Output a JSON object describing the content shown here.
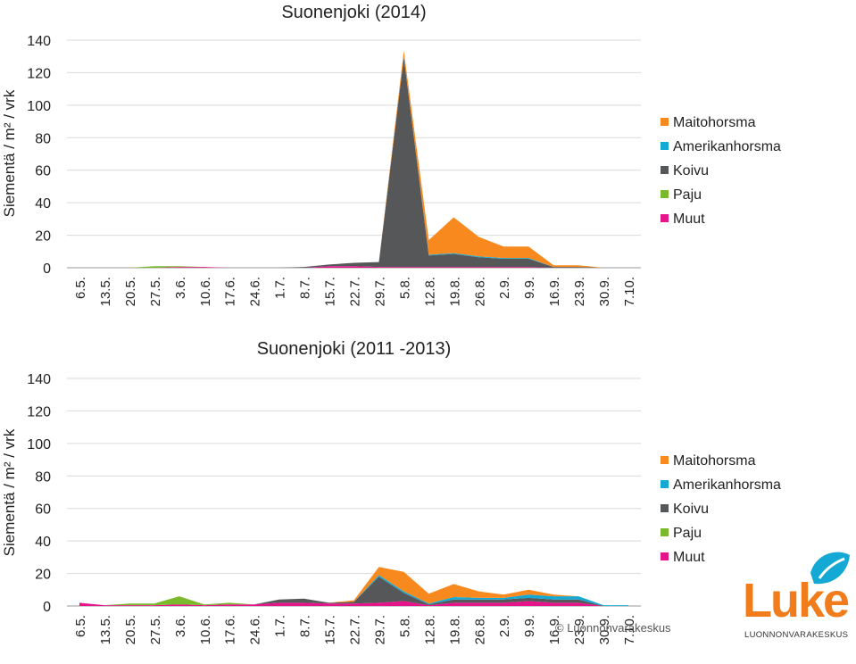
{
  "colors": {
    "Maitohorsma": "#f7891e",
    "Amerikanhorsma": "#13a9d4",
    "Koivu": "#555759",
    "Paju": "#7ab92c",
    "Muut": "#e6148a"
  },
  "chart_data": [
    {
      "type": "area",
      "title": "Suonenjoki (2014)",
      "ylabel": "Siementä / m² / vrk",
      "xlabel": "",
      "ylim": [
        0,
        140
      ],
      "yticks": [
        0,
        20,
        40,
        60,
        80,
        100,
        120,
        140
      ],
      "categories": [
        "6.5.",
        "13.5.",
        "20.5.",
        "27.5.",
        "3.6.",
        "10.6.",
        "17.6.",
        "24.6.",
        "1.7.",
        "8.7.",
        "15.7.",
        "22.7.",
        "29.7.",
        "5.8.",
        "12.8.",
        "19.8.",
        "26.8.",
        "2.9.",
        "9.9.",
        "16.9.",
        "23.9.",
        "30.9.",
        "7.10."
      ],
      "legend": "right",
      "series": [
        {
          "name": "Muut",
          "values": [
            0,
            0,
            0,
            0,
            0.5,
            0.5,
            0,
            0,
            0,
            0,
            1,
            1,
            0.5,
            0.5,
            0.5,
            0.5,
            0.5,
            0.5,
            0.5,
            0,
            0,
            0,
            0
          ]
        },
        {
          "name": "Paju",
          "values": [
            0,
            0,
            0,
            1,
            0.5,
            0,
            0,
            0,
            0,
            0,
            0,
            0,
            0,
            0,
            0,
            0,
            0,
            0,
            0,
            0,
            0,
            0,
            0
          ]
        },
        {
          "name": "Koivu",
          "values": [
            0,
            0,
            0,
            0,
            0,
            0,
            0,
            0,
            0,
            0.5,
            1,
            2,
            3,
            129,
            7,
            8,
            6,
            5,
            5,
            0.5,
            0.5,
            0,
            0
          ]
        },
        {
          "name": "Amerikanhorsma",
          "values": [
            0,
            0,
            0,
            0,
            0,
            0,
            0,
            0,
            0,
            0,
            0,
            0,
            0,
            0,
            0.5,
            0.5,
            0.5,
            0.5,
            0.5,
            0,
            0,
            0,
            0
          ]
        },
        {
          "name": "Maitohorsma",
          "values": [
            0,
            0,
            0,
            0,
            0,
            0,
            0,
            0,
            0,
            0,
            0,
            0,
            0,
            4,
            9,
            22,
            12,
            7,
            7,
            1,
            1,
            0,
            0
          ]
        }
      ]
    },
    {
      "type": "area",
      "title": "Suonenjoki (2011 -2013)",
      "ylabel": "Siementä / m² / vrk",
      "xlabel": "",
      "ylim": [
        0,
        140
      ],
      "yticks": [
        0,
        20,
        40,
        60,
        80,
        100,
        120,
        140
      ],
      "categories": [
        "6.5.",
        "13.5.",
        "20.5.",
        "27.5.",
        "3.6.",
        "10.6.",
        "17.6.",
        "24.6.",
        "1.7.",
        "8.7.",
        "15.7.",
        "22.7.",
        "29.7.",
        "5.8.",
        "12.8.",
        "19.8.",
        "26.8.",
        "2.9.",
        "9.9.",
        "16.9.",
        "23.9.",
        "30.9.",
        "7.10."
      ],
      "legend": "right",
      "series": [
        {
          "name": "Muut",
          "values": [
            2,
            0.5,
            0.5,
            0.5,
            1,
            0.5,
            1,
            1,
            2,
            2,
            1.5,
            1.5,
            2,
            3,
            0.5,
            2,
            2,
            2,
            3,
            2,
            2,
            0,
            0
          ]
        },
        {
          "name": "Paju",
          "values": [
            0,
            0,
            1,
            1,
            5,
            0.5,
            1,
            0,
            0,
            0,
            0,
            0,
            0,
            0,
            0,
            0,
            0,
            0,
            0,
            0,
            0,
            0,
            0
          ]
        },
        {
          "name": "Koivu",
          "values": [
            0,
            0,
            0,
            0,
            0,
            0,
            0,
            0,
            2,
            2.5,
            0.5,
            1,
            16,
            5,
            0.5,
            2,
            2,
            2,
            2,
            2,
            2,
            0,
            0
          ]
        },
        {
          "name": "Amerikanhorsma",
          "values": [
            0,
            0,
            0,
            0,
            0,
            0,
            0,
            0,
            0,
            0,
            0,
            0,
            1,
            1,
            0.5,
            1.5,
            1,
            1,
            2,
            2,
            2,
            0.5,
            0.5
          ]
        },
        {
          "name": "Maitohorsma",
          "values": [
            0,
            0,
            0,
            0,
            0,
            0,
            0,
            0,
            0,
            0,
            0,
            1,
            5,
            12,
            6,
            8,
            4,
            2,
            3,
            1,
            0,
            0,
            0
          ]
        }
      ]
    }
  ],
  "copyright": "© Luonnonvarakeskus",
  "logo": {
    "word": "Luke",
    "subtitle": "LUONNONVARAKESKUS"
  }
}
